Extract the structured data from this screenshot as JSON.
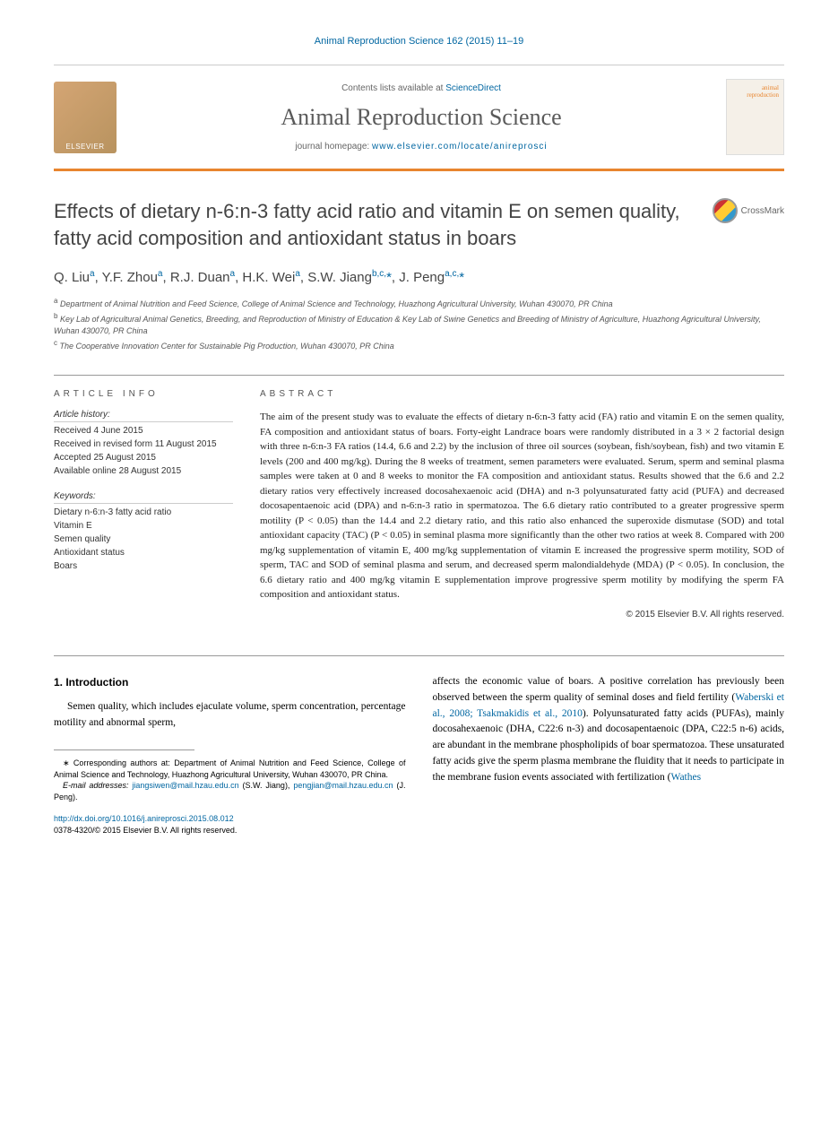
{
  "journal_ref": "Animal Reproduction Science 162 (2015) 11–19",
  "header": {
    "contents_prefix": "Contents lists available at ",
    "contents_link": "ScienceDirect",
    "journal_name": "Animal Reproduction Science",
    "homepage_prefix": "journal homepage: ",
    "homepage_url": "www.elsevier.com/locate/anireprosci",
    "elsevier": "ELSEVIER",
    "cover_text": "animal reproduction"
  },
  "crossmark": "CrossMark",
  "title": "Effects of dietary n-6:n-3 fatty acid ratio and vitamin E on semen quality, fatty acid composition and antioxidant status in boars",
  "authors_html": "Q. Liu<sup>a</sup>, Y.F. Zhou<sup>a</sup>, R.J. Duan<sup>a</sup>, H.K. Wei<sup>a</sup>, S.W. Jiang<sup>b,c,</sup><span class='asterisk'>*</span>, J. Peng<sup>a,c,</sup><span class='asterisk'>*</span>",
  "affiliations": {
    "a": "Department of Animal Nutrition and Feed Science, College of Animal Science and Technology, Huazhong Agricultural University, Wuhan 430070, PR China",
    "b": "Key Lab of Agricultural Animal Genetics, Breeding, and Reproduction of Ministry of Education & Key Lab of Swine Genetics and Breeding of Ministry of Agriculture, Huazhong Agricultural University, Wuhan 430070, PR China",
    "c": "The Cooperative Innovation Center for Sustainable Pig Production, Wuhan 430070, PR China"
  },
  "info": {
    "heading": "ARTICLE INFO",
    "history_label": "Article history:",
    "history": [
      "Received 4 June 2015",
      "Received in revised form 11 August 2015",
      "Accepted 25 August 2015",
      "Available online 28 August 2015"
    ],
    "keywords_label": "Keywords:",
    "keywords": [
      "Dietary n-6:n-3 fatty acid ratio",
      "Vitamin E",
      "Semen quality",
      "Antioxidant status",
      "Boars"
    ]
  },
  "abstract": {
    "heading": "ABSTRACT",
    "text": "The aim of the present study was to evaluate the effects of dietary n-6:n-3 fatty acid (FA) ratio and vitamin E on the semen quality, FA composition and antioxidant status of boars. Forty-eight Landrace boars were randomly distributed in a 3 × 2 factorial design with three n-6:n-3 FA ratios (14.4, 6.6 and 2.2) by the inclusion of three oil sources (soybean, fish/soybean, fish) and two vitamin E levels (200 and 400 mg/kg). During the 8 weeks of treatment, semen parameters were evaluated. Serum, sperm and seminal plasma samples were taken at 0 and 8 weeks to monitor the FA composition and antioxidant status. Results showed that the 6.6 and 2.2 dietary ratios very effectively increased docosahexaenoic acid (DHA) and n-3 polyunsaturated fatty acid (PUFA) and decreased docosapentaenoic acid (DPA) and n-6:n-3 ratio in spermatozoa. The 6.6 dietary ratio contributed to a greater progressive sperm motility (P < 0.05) than the 14.4 and 2.2 dietary ratio, and this ratio also enhanced the superoxide dismutase (SOD) and total antioxidant capacity (TAC) (P < 0.05) in seminal plasma more significantly than the other two ratios at week 8. Compared with 200 mg/kg supplementation of vitamin E, 400 mg/kg supplementation of vitamin E increased the progressive sperm motility, SOD of sperm, TAC and SOD of seminal plasma and serum, and decreased sperm malondialdehyde (MDA) (P < 0.05). In conclusion, the 6.6 dietary ratio and 400 mg/kg vitamin E supplementation improve progressive sperm motility by modifying the sperm FA composition and antioxidant status.",
    "copyright": "© 2015 Elsevier B.V. All rights reserved."
  },
  "intro": {
    "heading": "1.  Introduction",
    "col1": "Semen quality, which includes ejaculate volume, sperm concentration, percentage motility and abnormal sperm,",
    "col2_p1_pre": "affects the economic value of boars. A positive correlation has previously been observed between the sperm quality of seminal doses and field fertility (",
    "col2_cite1": "Waberski et al., 2008; Tsakmakidis et al., 2010",
    "col2_p1_post": "). Polyunsaturated fatty acids (PUFAs), mainly docosahexaenoic (DHA, C22:6 n-3) and docosapentaenoic (DPA, C22:5 n-6) acids, are abundant in the membrane phospholipids of boar spermatozoa. These unsaturated fatty acids give the sperm plasma membrane the fluidity that it needs to participate in the membrane fusion events associated with fertilization (",
    "col2_cite2": "Wathes"
  },
  "footnote": {
    "corr_label": "∗ Corresponding authors at: Department of Animal Nutrition and Feed Science, College of Animal Science and Technology, Huazhong Agricultural University, Wuhan 430070, PR China.",
    "email_label": "E-mail addresses: ",
    "email1": "jiangsiwen@mail.hzau.edu.cn",
    "email1_who": " (S.W. Jiang), ",
    "email2": "pengjian@mail.hzau.edu.cn",
    "email2_who": " (J. Peng)."
  },
  "doi": {
    "url": "http://dx.doi.org/10.1016/j.anireprosci.2015.08.012",
    "issn_line": "0378-4320/© 2015 Elsevier B.V. All rights reserved."
  },
  "colors": {
    "link": "#0066a1",
    "accent": "#e8852e",
    "text": "#222222"
  }
}
